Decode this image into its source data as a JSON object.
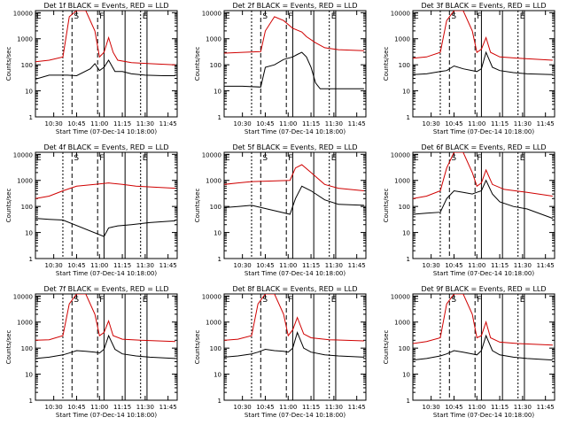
{
  "common": {
    "xlabel": "Start Time (07-Dec-14 10:18:00)",
    "ylabel": "Counts/sec",
    "x_ticks": [
      "10:30",
      "10:45",
      "11:00",
      "11:15",
      "11:30",
      "11:45"
    ],
    "y_ticks": [
      "1",
      "10",
      "100",
      "1000",
      "10000"
    ],
    "ylim": [
      1,
      12000
    ],
    "y_scale": "log",
    "marker_letters": [
      "E",
      "S",
      "F",
      "E"
    ],
    "colors": {
      "events": "#000000",
      "lld": "#d00000"
    }
  },
  "chart_data": [
    {
      "type": "line",
      "title": "Det 1f BLACK = Events, RED = LLD",
      "series": [
        {
          "name": "Events",
          "values": [
            [
              10.3,
              28
            ],
            [
              10.45,
              40
            ],
            [
              10.65,
              40
            ],
            [
              10.75,
              38
            ],
            [
              10.9,
              70
            ],
            [
              10.95,
              110
            ],
            [
              11.0,
              60
            ],
            [
              11.05,
              80
            ],
            [
              11.1,
              150
            ],
            [
              11.17,
              55
            ],
            [
              11.25,
              55
            ],
            [
              11.35,
              45
            ],
            [
              11.5,
              40
            ],
            [
              11.7,
              38
            ],
            [
              11.83,
              38
            ]
          ]
        },
        {
          "name": "LLD",
          "values": [
            [
              10.3,
              130
            ],
            [
              10.45,
              150
            ],
            [
              10.6,
              200
            ],
            [
              10.67,
              7000
            ],
            [
              10.75,
              12000
            ],
            [
              10.85,
              12000
            ],
            [
              10.95,
              2000
            ],
            [
              11.0,
              200
            ],
            [
              11.05,
              300
            ],
            [
              11.1,
              1100
            ],
            [
              11.15,
              300
            ],
            [
              11.2,
              150
            ],
            [
              11.35,
              120
            ],
            [
              11.55,
              110
            ],
            [
              11.83,
              100
            ]
          ]
        }
      ]
    },
    {
      "type": "line",
      "title": "Det 2f BLACK = Events, RED = LLD",
      "series": [
        {
          "name": "Events",
          "values": [
            [
              10.3,
              15
            ],
            [
              10.5,
              15
            ],
            [
              10.7,
              14
            ],
            [
              10.75,
              80
            ],
            [
              10.85,
              100
            ],
            [
              10.95,
              160
            ],
            [
              11.05,
              200
            ],
            [
              11.1,
              250
            ],
            [
              11.15,
              300
            ],
            [
              11.2,
              200
            ],
            [
              11.25,
              80
            ],
            [
              11.3,
              20
            ],
            [
              11.35,
              12
            ],
            [
              11.55,
              12
            ],
            [
              11.83,
              12
            ]
          ]
        },
        {
          "name": "LLD",
          "values": [
            [
              10.3,
              280
            ],
            [
              10.5,
              300
            ],
            [
              10.7,
              320
            ],
            [
              10.75,
              2000
            ],
            [
              10.85,
              7000
            ],
            [
              10.95,
              5000
            ],
            [
              11.05,
              2500
            ],
            [
              11.15,
              1800
            ],
            [
              11.2,
              1200
            ],
            [
              11.3,
              700
            ],
            [
              11.4,
              450
            ],
            [
              11.55,
              380
            ],
            [
              11.83,
              350
            ]
          ]
        }
      ]
    },
    {
      "type": "line",
      "title": "Det 3f BLACK = Events, RED = LLD",
      "series": [
        {
          "name": "Events",
          "values": [
            [
              10.3,
              42
            ],
            [
              10.45,
              45
            ],
            [
              10.6,
              55
            ],
            [
              10.67,
              60
            ],
            [
              10.75,
              90
            ],
            [
              10.85,
              70
            ],
            [
              10.95,
              60
            ],
            [
              11.0,
              55
            ],
            [
              11.05,
              70
            ],
            [
              11.1,
              300
            ],
            [
              11.17,
              80
            ],
            [
              11.25,
              60
            ],
            [
              11.4,
              50
            ],
            [
              11.55,
              45
            ],
            [
              11.83,
              42
            ]
          ]
        },
        {
          "name": "LLD",
          "values": [
            [
              10.3,
              180
            ],
            [
              10.45,
              200
            ],
            [
              10.6,
              300
            ],
            [
              10.67,
              5000
            ],
            [
              10.75,
              12000
            ],
            [
              10.85,
              12000
            ],
            [
              10.95,
              2000
            ],
            [
              11.0,
              300
            ],
            [
              11.05,
              400
            ],
            [
              11.1,
              1100
            ],
            [
              11.15,
              300
            ],
            [
              11.25,
              200
            ],
            [
              11.45,
              180
            ],
            [
              11.83,
              150
            ]
          ]
        }
      ]
    },
    {
      "type": "line",
      "title": "Det 4f BLACK = Events, RED = LLD",
      "series": [
        {
          "name": "Events",
          "values": [
            [
              10.3,
              35
            ],
            [
              10.45,
              32
            ],
            [
              10.6,
              30
            ],
            [
              11.05,
              7
            ],
            [
              11.1,
              15
            ],
            [
              11.2,
              18
            ],
            [
              11.35,
              20
            ],
            [
              11.55,
              24
            ],
            [
              11.83,
              28
            ]
          ]
        },
        {
          "name": "LLD",
          "values": [
            [
              10.3,
              200
            ],
            [
              10.45,
              250
            ],
            [
              10.6,
              400
            ],
            [
              10.75,
              600
            ],
            [
              10.95,
              700
            ],
            [
              11.1,
              800
            ],
            [
              11.25,
              700
            ],
            [
              11.4,
              600
            ],
            [
              11.6,
              550
            ],
            [
              11.83,
              500
            ]
          ]
        }
      ]
    },
    {
      "type": "line",
      "title": "Det 5f BLACK = Events, RED = LLD",
      "series": [
        {
          "name": "Events",
          "values": [
            [
              10.3,
              90
            ],
            [
              10.45,
              100
            ],
            [
              10.6,
              110
            ],
            [
              11.02,
              50
            ],
            [
              11.08,
              200
            ],
            [
              11.15,
              600
            ],
            [
              11.25,
              400
            ],
            [
              11.4,
              180
            ],
            [
              11.55,
              120
            ],
            [
              11.83,
              110
            ]
          ]
        },
        {
          "name": "LLD",
          "values": [
            [
              10.3,
              700
            ],
            [
              10.45,
              800
            ],
            [
              10.6,
              900
            ],
            [
              11.02,
              1000
            ],
            [
              11.08,
              3000
            ],
            [
              11.15,
              4000
            ],
            [
              11.25,
              2000
            ],
            [
              11.4,
              700
            ],
            [
              11.55,
              500
            ],
            [
              11.83,
              400
            ]
          ]
        }
      ]
    },
    {
      "type": "line",
      "title": "Det 6f BLACK = Events, RED = LLD",
      "series": [
        {
          "name": "Events",
          "values": [
            [
              10.3,
              50
            ],
            [
              10.45,
              55
            ],
            [
              10.6,
              60
            ],
            [
              10.67,
              200
            ],
            [
              10.75,
              400
            ],
            [
              10.85,
              350
            ],
            [
              10.95,
              300
            ],
            [
              11.0,
              350
            ],
            [
              11.05,
              400
            ],
            [
              11.1,
              1000
            ],
            [
              11.17,
              300
            ],
            [
              11.25,
              150
            ],
            [
              11.4,
              100
            ],
            [
              11.55,
              80
            ],
            [
              11.83,
              35
            ]
          ]
        },
        {
          "name": "LLD",
          "values": [
            [
              10.3,
              200
            ],
            [
              10.45,
              250
            ],
            [
              10.6,
              400
            ],
            [
              10.67,
              3000
            ],
            [
              10.75,
              12000
            ],
            [
              10.85,
              12000
            ],
            [
              10.95,
              2000
            ],
            [
              11.0,
              600
            ],
            [
              11.05,
              800
            ],
            [
              11.1,
              2500
            ],
            [
              11.17,
              700
            ],
            [
              11.3,
              450
            ],
            [
              11.55,
              350
            ],
            [
              11.83,
              250
            ]
          ]
        }
      ]
    },
    {
      "type": "line",
      "title": "Det 7f BLACK = Events, RED = LLD",
      "series": [
        {
          "name": "Events",
          "values": [
            [
              10.3,
              40
            ],
            [
              10.45,
              45
            ],
            [
              10.6,
              55
            ],
            [
              10.67,
              65
            ],
            [
              10.75,
              80
            ],
            [
              10.85,
              75
            ],
            [
              10.95,
              70
            ],
            [
              11.0,
              65
            ],
            [
              11.05,
              90
            ],
            [
              11.1,
              300
            ],
            [
              11.17,
              90
            ],
            [
              11.25,
              60
            ],
            [
              11.4,
              50
            ],
            [
              11.55,
              45
            ],
            [
              11.83,
              40
            ]
          ]
        },
        {
          "name": "LLD",
          "values": [
            [
              10.3,
              200
            ],
            [
              10.45,
              210
            ],
            [
              10.6,
              300
            ],
            [
              10.67,
              5000
            ],
            [
              10.75,
              12000
            ],
            [
              10.85,
              12000
            ],
            [
              10.95,
              2000
            ],
            [
              11.0,
              300
            ],
            [
              11.05,
              400
            ],
            [
              11.1,
              1100
            ],
            [
              11.15,
              300
            ],
            [
              11.25,
              220
            ],
            [
              11.45,
              200
            ],
            [
              11.83,
              180
            ]
          ]
        }
      ]
    },
    {
      "type": "line",
      "title": "Det 8f BLACK = Events, RED = LLD",
      "series": [
        {
          "name": "Events",
          "values": [
            [
              10.3,
              45
            ],
            [
              10.45,
              50
            ],
            [
              10.6,
              60
            ],
            [
              10.67,
              70
            ],
            [
              10.75,
              90
            ],
            [
              10.85,
              80
            ],
            [
              10.95,
              75
            ],
            [
              11.0,
              70
            ],
            [
              11.05,
              100
            ],
            [
              11.1,
              400
            ],
            [
              11.17,
              100
            ],
            [
              11.25,
              70
            ],
            [
              11.4,
              55
            ],
            [
              11.55,
              50
            ],
            [
              11.83,
              45
            ]
          ]
        },
        {
          "name": "LLD",
          "values": [
            [
              10.3,
              200
            ],
            [
              10.45,
              220
            ],
            [
              10.6,
              300
            ],
            [
              10.67,
              5000
            ],
            [
              10.75,
              12000
            ],
            [
              10.85,
              12000
            ],
            [
              10.95,
              2000
            ],
            [
              11.0,
              300
            ],
            [
              11.05,
              500
            ],
            [
              11.1,
              1500
            ],
            [
              11.17,
              350
            ],
            [
              11.25,
              250
            ],
            [
              11.45,
              210
            ],
            [
              11.83,
              190
            ]
          ]
        }
      ]
    },
    {
      "type": "line",
      "title": "Det 9f BLACK = Events, RED = LLD",
      "series": [
        {
          "name": "Events",
          "values": [
            [
              10.3,
              35
            ],
            [
              10.45,
              40
            ],
            [
              10.6,
              50
            ],
            [
              10.67,
              60
            ],
            [
              10.75,
              80
            ],
            [
              10.85,
              70
            ],
            [
              10.95,
              60
            ],
            [
              11.0,
              55
            ],
            [
              11.05,
              80
            ],
            [
              11.1,
              300
            ],
            [
              11.17,
              80
            ],
            [
              11.25,
              55
            ],
            [
              11.4,
              45
            ],
            [
              11.55,
              40
            ],
            [
              11.83,
              35
            ]
          ]
        },
        {
          "name": "LLD",
          "values": [
            [
              10.3,
              150
            ],
            [
              10.45,
              180
            ],
            [
              10.6,
              250
            ],
            [
              10.67,
              5000
            ],
            [
              10.75,
              12000
            ],
            [
              10.85,
              12000
            ],
            [
              10.95,
              2000
            ],
            [
              11.0,
              250
            ],
            [
              11.05,
              300
            ],
            [
              11.1,
              1000
            ],
            [
              11.15,
              250
            ],
            [
              11.25,
              170
            ],
            [
              11.45,
              150
            ],
            [
              11.83,
              130
            ]
          ]
        }
      ]
    }
  ]
}
